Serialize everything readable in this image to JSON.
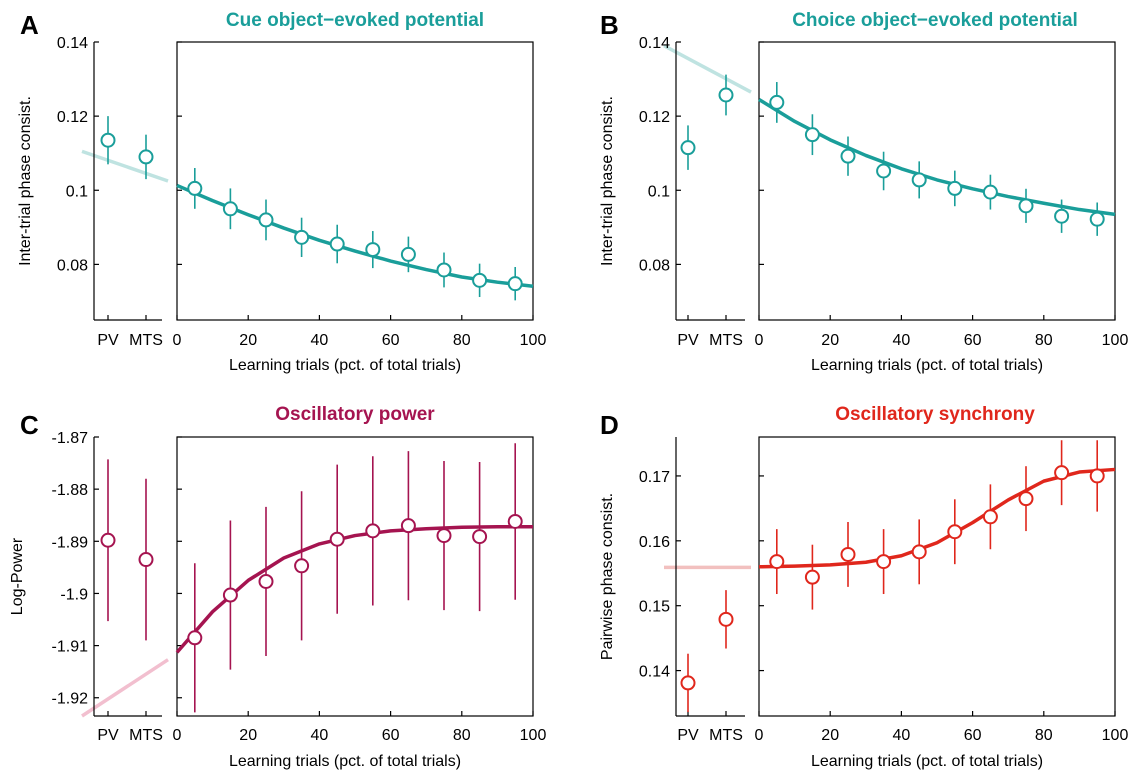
{
  "chart_data": [
    {
      "panel_letter": "A",
      "type": "scatter",
      "title": "Cue object−evoked potential",
      "color": "#1a9e9a",
      "fit_color_light": "#bfe3e1",
      "ylabel": "Inter-trial phase consist.",
      "xlabel": "Learning trials (pct. of total trials)",
      "ylim": [
        0.065,
        0.14
      ],
      "yticks": [
        0.08,
        0.1,
        0.12,
        0.14
      ],
      "ytick_labels": [
        "0.08",
        "0.1",
        "0.12",
        "0.14"
      ],
      "xlim": [
        0,
        100
      ],
      "xticks": [
        0,
        20,
        40,
        60,
        80,
        100
      ],
      "xtick_labels": [
        "0",
        "20",
        "40",
        "60",
        "80",
        "100"
      ],
      "baseline_categories": [
        "PV",
        "MTS"
      ],
      "baseline_values": [
        0.1135,
        0.109
      ],
      "baseline_err": [
        0.0065,
        0.006
      ],
      "x": [
        5,
        15,
        25,
        35,
        45,
        55,
        65,
        75,
        85,
        95
      ],
      "values": [
        0.1005,
        0.095,
        0.092,
        0.0873,
        0.0855,
        0.084,
        0.0827,
        0.0785,
        0.0757,
        0.0748
      ],
      "err": [
        0.0055,
        0.0055,
        0.0055,
        0.0053,
        0.0052,
        0.005,
        0.0048,
        0.0047,
        0.0045,
        0.0045
      ],
      "fit_x": [
        0,
        10,
        20,
        30,
        40,
        50,
        60,
        70,
        80,
        90,
        100
      ],
      "fit_y": [
        0.1013,
        0.0972,
        0.0934,
        0.0898,
        0.0865,
        0.0836,
        0.0809,
        0.0786,
        0.0766,
        0.0752,
        0.0741
      ],
      "baseline_fit": [
        0.1105,
        0.1025
      ]
    },
    {
      "panel_letter": "B",
      "type": "scatter",
      "title": "Choice object−evoked potential",
      "color": "#1a9e9a",
      "fit_color_light": "#bfe3e1",
      "ylabel": "Inter-trial phase consist.",
      "xlabel": "Learning trials (pct. of total trials)",
      "ylim": [
        0.065,
        0.14
      ],
      "yticks": [
        0.08,
        0.1,
        0.12,
        0.14
      ],
      "ytick_labels": [
        "0.08",
        "0.1",
        "0.12",
        "0.14"
      ],
      "xlim": [
        0,
        100
      ],
      "xticks": [
        0,
        20,
        40,
        60,
        80,
        100
      ],
      "xtick_labels": [
        "0",
        "20",
        "40",
        "60",
        "80",
        "100"
      ],
      "baseline_categories": [
        "PV",
        "MTS"
      ],
      "baseline_values": [
        0.1115,
        0.1257
      ],
      "baseline_err": [
        0.006,
        0.0055
      ],
      "x": [
        5,
        15,
        25,
        35,
        45,
        55,
        65,
        75,
        85,
        95
      ],
      "values": [
        0.1237,
        0.115,
        0.1092,
        0.1052,
        0.1028,
        0.1005,
        0.0995,
        0.0958,
        0.093,
        0.0922
      ],
      "err": [
        0.0055,
        0.0055,
        0.0053,
        0.0052,
        0.005,
        0.0048,
        0.0047,
        0.0046,
        0.0045,
        0.0045
      ],
      "fit_x": [
        0,
        10,
        20,
        30,
        40,
        50,
        60,
        70,
        80,
        90,
        100
      ],
      "fit_y": [
        0.1245,
        0.1186,
        0.1136,
        0.1094,
        0.1058,
        0.1028,
        0.1004,
        0.0983,
        0.0965,
        0.0948,
        0.0935
      ],
      "baseline_fit": [
        0.139,
        0.1265
      ]
    },
    {
      "panel_letter": "C",
      "type": "scatter",
      "title": "Oscillatory power",
      "color": "#a51450",
      "fit_color_light": "#f2bfcf",
      "ylabel": "Log-Power",
      "xlabel": "Learning trials (pct. of total trials)",
      "ylim": [
        -1.9235,
        -1.87
      ],
      "yticks": [
        -1.92,
        -1.91,
        -1.9,
        -1.89,
        -1.88,
        -1.87
      ],
      "ytick_labels": [
        "-1.92",
        "-1.91",
        "-1.9",
        "-1.89",
        "-1.88",
        "-1.87"
      ],
      "xlim": [
        0,
        100
      ],
      "xticks": [
        0,
        20,
        40,
        60,
        80,
        100
      ],
      "xtick_labels": [
        "0",
        "20",
        "40",
        "60",
        "80",
        "100"
      ],
      "baseline_categories": [
        "PV",
        "MTS"
      ],
      "baseline_values": [
        -1.8898,
        -1.8935
      ],
      "baseline_err": [
        0.0155,
        0.0155
      ],
      "x": [
        5,
        15,
        25,
        35,
        45,
        55,
        65,
        75,
        85,
        95
      ],
      "values": [
        -1.9085,
        -1.9003,
        -1.8977,
        -1.8947,
        -1.8896,
        -1.888,
        -1.887,
        -1.8889,
        -1.8891,
        -1.8862
      ],
      "err": [
        0.0143,
        0.0143,
        0.0143,
        0.0143,
        0.0143,
        0.0143,
        0.0143,
        0.0143,
        0.0143,
        0.015
      ],
      "fit_x": [
        0,
        10,
        20,
        30,
        40,
        50,
        60,
        70,
        80,
        90,
        100
      ],
      "fit_y": [
        -1.9113,
        -1.9035,
        -1.8975,
        -1.8932,
        -1.8905,
        -1.8889,
        -1.888,
        -1.8876,
        -1.8873,
        -1.8872,
        -1.8872
      ],
      "baseline_fit": [
        -1.9235,
        -1.9127
      ]
    },
    {
      "panel_letter": "D",
      "type": "scatter",
      "title": "Oscillatory synchrony",
      "color": "#e0271c",
      "fit_color_light": "#f2c0bf",
      "ylabel": "Pairwise phase consist.",
      "xlabel": "Learning trials (pct. of total trials)",
      "ylim": [
        0.133,
        0.176
      ],
      "yticks": [
        0.14,
        0.15,
        0.16,
        0.17
      ],
      "ytick_labels": [
        "0.14",
        "0.15",
        "0.16",
        "0.17"
      ],
      "xlim": [
        0,
        100
      ],
      "xticks": [
        0,
        20,
        40,
        60,
        80,
        100
      ],
      "xtick_labels": [
        "0",
        "20",
        "40",
        "60",
        "80",
        "100"
      ],
      "baseline_categories": [
        "PV",
        "MTS"
      ],
      "baseline_values": [
        0.1381,
        0.1479
      ],
      "baseline_err": [
        0.0045,
        0.0045
      ],
      "x": [
        5,
        15,
        25,
        35,
        45,
        55,
        65,
        75,
        85,
        95
      ],
      "values": [
        0.1568,
        0.1544,
        0.1579,
        0.1568,
        0.1583,
        0.1614,
        0.1637,
        0.1665,
        0.1705,
        0.17
      ],
      "err": [
        0.005,
        0.005,
        0.005,
        0.005,
        0.005,
        0.005,
        0.005,
        0.005,
        0.005,
        0.0055
      ],
      "fit_x": [
        0,
        10,
        20,
        30,
        40,
        50,
        60,
        70,
        80,
        90,
        100
      ],
      "fit_y": [
        0.156,
        0.1561,
        0.1563,
        0.1567,
        0.1577,
        0.1597,
        0.1628,
        0.1663,
        0.1692,
        0.1706,
        0.171
      ],
      "baseline_fit": [
        0.1559,
        0.1559
      ]
    }
  ]
}
